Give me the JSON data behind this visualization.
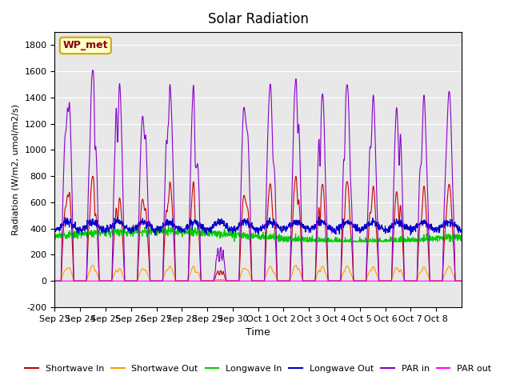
{
  "title": "Solar Radiation",
  "ylabel": "Radiation (W/m2, umol/m2/s)",
  "xlabel": "Time",
  "ylim": [
    -200,
    1900
  ],
  "yticks": [
    -200,
    0,
    200,
    400,
    600,
    800,
    1000,
    1200,
    1400,
    1600,
    1800
  ],
  "x_labels": [
    "Sep 23",
    "Sep 24",
    "Sep 25",
    "Sep 26",
    "Sep 27",
    "Sep 28",
    "Sep 29",
    "Sep 30",
    "Oct 1",
    "Oct 2",
    "Oct 3",
    "Oct 4",
    "Oct 5",
    "Oct 6",
    "Oct 7",
    "Oct 8"
  ],
  "station_label": "WP_met",
  "background_color": "#e8e8e8",
  "series": {
    "shortwave_in": {
      "color": "#cc0000",
      "label": "Shortwave In"
    },
    "shortwave_out": {
      "color": "#ff9900",
      "label": "Shortwave Out"
    },
    "longwave_in": {
      "color": "#00cc00",
      "label": "Longwave In"
    },
    "longwave_out": {
      "color": "#0000cc",
      "label": "Longwave Out"
    },
    "par_in": {
      "color": "#8800cc",
      "label": "PAR in"
    },
    "par_out": {
      "color": "#ff00ff",
      "label": "PAR out"
    }
  }
}
